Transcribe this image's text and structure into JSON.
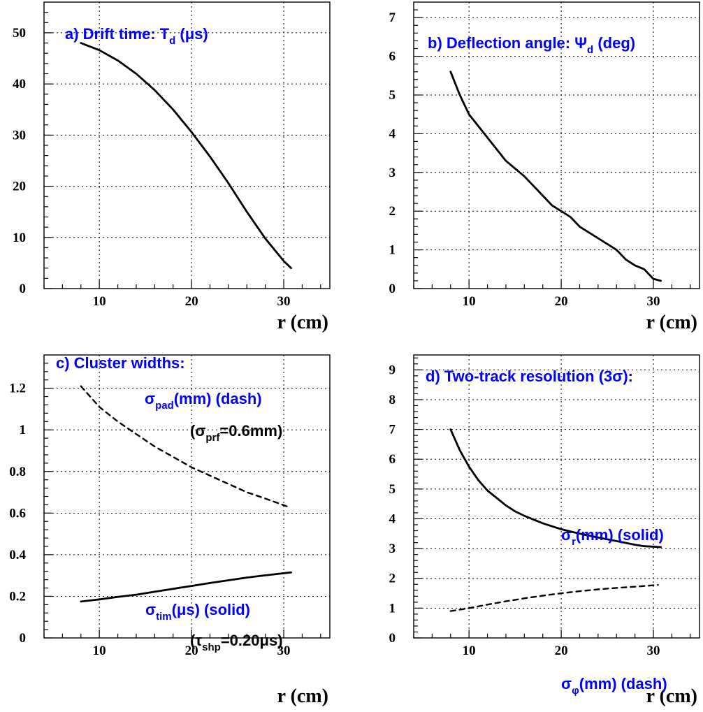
{
  "chart_data": [
    {
      "type": "line",
      "xlabel": "r (cm)",
      "xlim": [
        4,
        35
      ],
      "ylim": [
        0,
        56
      ],
      "yticks": [
        0,
        10,
        20,
        30,
        40,
        50
      ],
      "xticks": [
        10,
        20,
        30
      ],
      "annotations": [
        {
          "id": "a",
          "pre": "a) Drift time: T",
          "sub": "d",
          "post": " (μs)",
          "color": "#0000ff"
        }
      ],
      "series": [
        {
          "style": "solid",
          "x": [
            8,
            10,
            12,
            14,
            16,
            18,
            20,
            22,
            24,
            26,
            28,
            30,
            30.8
          ],
          "y": [
            48,
            46.6,
            44.6,
            42,
            38.8,
            35,
            30.6,
            25.8,
            20.6,
            15,
            9.8,
            5.4,
            4
          ]
        }
      ]
    },
    {
      "type": "line",
      "xlabel": "r (cm)",
      "xlim": [
        4,
        35
      ],
      "ylim": [
        0,
        7.4
      ],
      "yticks": [
        0,
        1,
        2,
        3,
        4,
        5,
        6,
        7
      ],
      "xticks": [
        10,
        20,
        30
      ],
      "annotations": [
        {
          "id": "b",
          "pre": "b) Deflection angle: Ψ",
          "sub": "d",
          "post": " (deg)",
          "color": "#0000ff"
        }
      ],
      "series": [
        {
          "style": "solid",
          "x": [
            8,
            9,
            10,
            12,
            14,
            16,
            18,
            19,
            20,
            21,
            22,
            24,
            26,
            27,
            28,
            29,
            30,
            30.8
          ],
          "y": [
            5.6,
            5.0,
            4.5,
            3.9,
            3.3,
            2.9,
            2.4,
            2.15,
            2.0,
            1.85,
            1.6,
            1.3,
            1.0,
            0.75,
            0.6,
            0.5,
            0.25,
            0.2
          ]
        }
      ]
    },
    {
      "type": "line",
      "xlabel": "r (cm)",
      "xlim": [
        4,
        35
      ],
      "ylim": [
        0,
        1.36
      ],
      "yticks": [
        0,
        0.2,
        0.4,
        0.6,
        0.8,
        1,
        1.2
      ],
      "xticks": [
        10,
        20,
        30
      ],
      "annotations": [
        {
          "id": "c1",
          "pre": "c) Cluster widths:",
          "sub": "",
          "post": "",
          "color": "#0000ff"
        },
        {
          "id": "c2",
          "pre": "σ",
          "sub": "pad",
          "post": "(mm) (dash)",
          "color": "#0000ff"
        },
        {
          "id": "c3",
          "pre": "(σ",
          "sub": "prf",
          "post": "=0.6mm)",
          "color": "#000000"
        },
        {
          "id": "c4",
          "pre": "σ",
          "sub": "tim",
          "post": "(μs) (solid)",
          "color": "#0000ff"
        },
        {
          "id": "c5",
          "pre": "(τ",
          "sub": "shp",
          "post": "=0.20μs)",
          "color": "#000000"
        }
      ],
      "series": [
        {
          "style": "dash",
          "x": [
            8,
            10,
            12,
            14,
            16,
            18,
            20,
            22,
            24,
            26,
            28,
            30.5
          ],
          "y": [
            1.21,
            1.11,
            1.04,
            0.98,
            0.92,
            0.87,
            0.82,
            0.78,
            0.74,
            0.7,
            0.67,
            0.63
          ]
        },
        {
          "style": "solid",
          "x": [
            8,
            10,
            12,
            14,
            16,
            18,
            20,
            22,
            24,
            26,
            28,
            30.8
          ],
          "y": [
            0.175,
            0.185,
            0.197,
            0.208,
            0.222,
            0.236,
            0.25,
            0.264,
            0.277,
            0.29,
            0.301,
            0.315
          ]
        }
      ]
    },
    {
      "type": "line",
      "xlabel": "r (cm)",
      "xlim": [
        4,
        35
      ],
      "ylim": [
        0,
        9.5
      ],
      "yticks": [
        0,
        1,
        2,
        3,
        4,
        5,
        6,
        7,
        8,
        9
      ],
      "xticks": [
        10,
        20,
        30
      ],
      "annotations": [
        {
          "id": "d1",
          "pre": "d) Two-track resolution (3σ):",
          "sub": "",
          "post": "",
          "color": "#0000ff"
        },
        {
          "id": "d2",
          "pre": "σ",
          "sub": "r",
          "post": "(mm) (solid)",
          "color": "#0000ff"
        },
        {
          "id": "d3",
          "pre": "σ",
          "sub": "φ",
          "post": "(mm) (dash)",
          "color": "#0000ff"
        }
      ],
      "series": [
        {
          "style": "solid",
          "x": [
            8,
            9,
            10,
            11,
            12,
            13,
            14,
            15,
            16,
            18,
            20,
            22,
            24,
            26,
            28,
            29,
            30.8
          ],
          "y": [
            7.0,
            6.3,
            5.75,
            5.3,
            4.95,
            4.7,
            4.45,
            4.25,
            4.1,
            3.85,
            3.65,
            3.5,
            3.37,
            3.25,
            3.13,
            3.08,
            3.05
          ]
        },
        {
          "style": "dash",
          "x": [
            8,
            10,
            12,
            14,
            16,
            18,
            20,
            22,
            24,
            26,
            28,
            30.5
          ],
          "y": [
            0.9,
            1.0,
            1.12,
            1.23,
            1.33,
            1.42,
            1.5,
            1.57,
            1.63,
            1.68,
            1.72,
            1.78
          ]
        }
      ]
    }
  ]
}
